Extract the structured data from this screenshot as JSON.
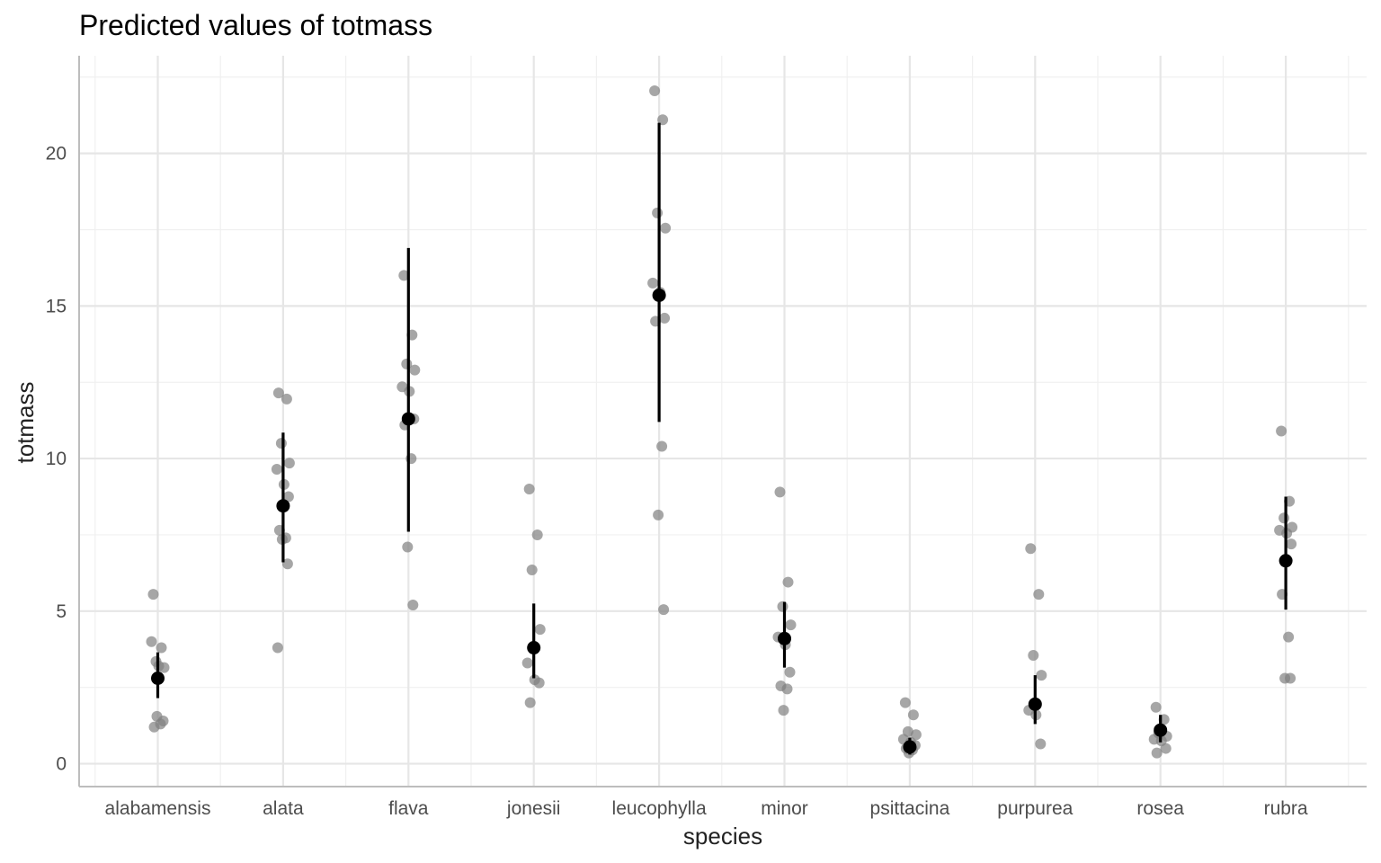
{
  "chart_data": {
    "type": "scatter",
    "title": "Predicted values of totmass",
    "xlabel": "species",
    "ylabel": "totmass",
    "ylim": [
      -0.75,
      23.2
    ],
    "y_ticks": [
      0,
      5,
      10,
      15,
      20
    ],
    "grid": true,
    "legend": "none",
    "categories": [
      "alabamensis",
      "alata",
      "flava",
      "jonesii",
      "leucophylla",
      "minor",
      "psittacina",
      "purpurea",
      "rosea",
      "rubra"
    ],
    "predicted": {
      "name": "",
      "color": "#000000",
      "values": [
        2.8,
        8.45,
        11.3,
        3.8,
        15.35,
        4.1,
        0.55,
        1.95,
        1.1,
        6.65
      ],
      "ci_low": [
        2.15,
        6.6,
        7.6,
        2.8,
        11.2,
        3.15,
        0.3,
        1.3,
        0.7,
        5.05
      ],
      "ci_high": [
        3.65,
        10.85,
        16.9,
        5.25,
        21.0,
        5.3,
        0.85,
        2.9,
        1.6,
        8.75
      ]
    },
    "observations": {
      "color": "#808080",
      "points": [
        {
          "species": "alabamensis",
          "values": [
            5.55,
            3.8,
            3.35,
            3.15,
            4.0,
            3.2,
            1.4,
            1.2,
            1.3,
            1.55
          ]
        },
        {
          "species": "alata",
          "values": [
            12.15,
            11.95,
            10.5,
            9.85,
            9.65,
            9.15,
            8.75,
            7.65,
            7.4,
            7.35,
            6.55,
            3.8
          ]
        },
        {
          "species": "flava",
          "values": [
            16.0,
            14.05,
            13.1,
            12.9,
            12.35,
            12.2,
            11.3,
            11.1,
            10.0,
            7.1,
            5.2
          ]
        },
        {
          "species": "jonesii",
          "values": [
            9.0,
            7.5,
            6.35,
            4.4,
            3.3,
            2.75,
            2.65,
            2.0
          ]
        },
        {
          "species": "leucophylla",
          "values": [
            22.05,
            21.1,
            18.05,
            17.55,
            15.75,
            15.45,
            14.6,
            14.5,
            10.4,
            8.15,
            5.05
          ]
        },
        {
          "species": "minor",
          "values": [
            8.9,
            5.95,
            5.15,
            4.55,
            4.15,
            3.9,
            3.0,
            2.55,
            2.45,
            1.75
          ]
        },
        {
          "species": "psittacina",
          "values": [
            2.0,
            1.6,
            1.05,
            0.95,
            0.8,
            0.7,
            0.6,
            0.5,
            0.45,
            0.35
          ]
        },
        {
          "species": "purpurea",
          "values": [
            7.05,
            5.55,
            3.55,
            2.9,
            1.75,
            1.6,
            0.65
          ]
        },
        {
          "species": "rosea",
          "values": [
            1.85,
            1.45,
            1.0,
            0.9,
            0.8,
            0.75,
            0.5,
            0.35
          ]
        },
        {
          "species": "rubra",
          "values": [
            10.9,
            8.6,
            8.05,
            7.75,
            7.65,
            7.55,
            7.2,
            5.55,
            4.15,
            2.8,
            2.8
          ]
        }
      ]
    }
  }
}
